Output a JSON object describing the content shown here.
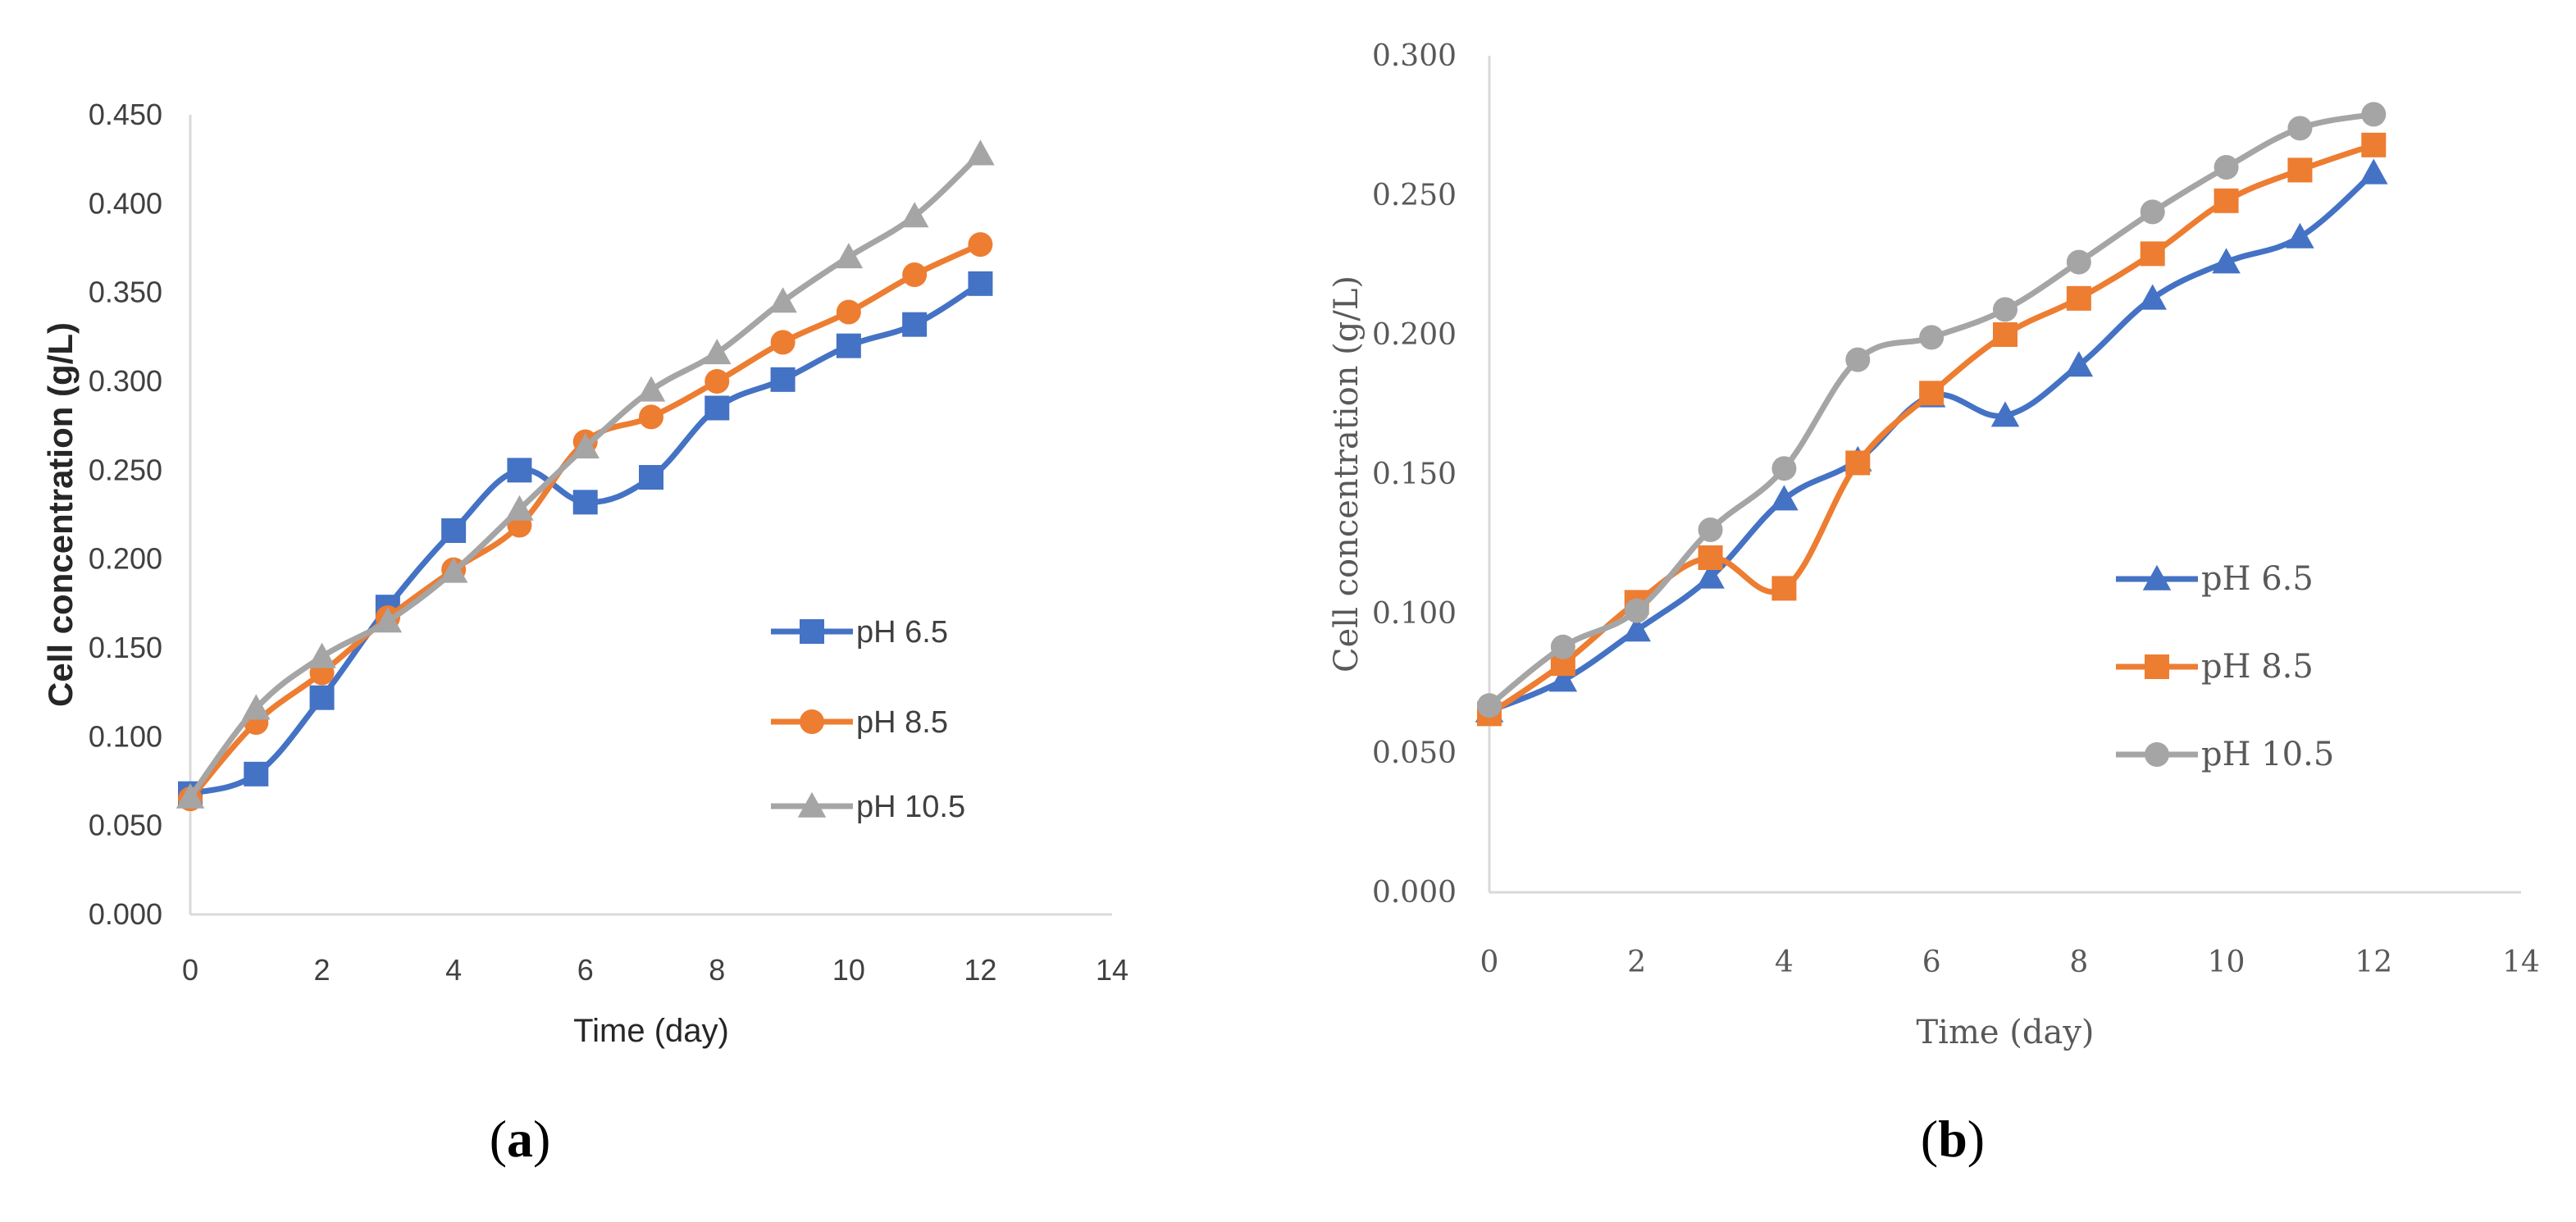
{
  "chart_data": [
    {
      "panel": "a",
      "type": "line",
      "xlabel": "Time (day)",
      "ylabel": "Cell concentration (g/L)",
      "xlim": [
        0,
        14
      ],
      "ylim": [
        0,
        0.45
      ],
      "xticks": [
        "0",
        "2",
        "4",
        "6",
        "8",
        "10",
        "12",
        "14"
      ],
      "yticks": [
        "0.000",
        "0.050",
        "0.100",
        "0.150",
        "0.200",
        "0.250",
        "0.300",
        "0.350",
        "0.400",
        "0.450"
      ],
      "x": [
        0,
        1,
        2,
        3,
        4,
        5,
        6,
        7,
        8,
        9,
        10,
        11,
        12
      ],
      "series": [
        {
          "name": "pH 6.5",
          "color": "#4472c4",
          "marker": "square",
          "values": [
            0.068,
            0.079,
            0.122,
            0.173,
            0.216,
            0.25,
            0.232,
            0.246,
            0.285,
            0.301,
            0.32,
            0.332,
            0.355
          ]
        },
        {
          "name": "pH 8.5",
          "color": "#ed7d31",
          "marker": "circle",
          "values": [
            0.065,
            0.108,
            0.136,
            0.167,
            0.194,
            0.219,
            0.266,
            0.28,
            0.3,
            0.322,
            0.339,
            0.36,
            0.377
          ]
        },
        {
          "name": "pH 10.5",
          "color": "#a5a5a5",
          "marker": "triangle",
          "values": [
            0.066,
            0.116,
            0.145,
            0.165,
            0.193,
            0.228,
            0.263,
            0.295,
            0.316,
            0.345,
            0.37,
            0.393,
            0.428
          ]
        }
      ]
    },
    {
      "panel": "b",
      "type": "line",
      "xlabel": "Time (day)",
      "ylabel": "Cell concentration (g/L)",
      "xlim": [
        0,
        14
      ],
      "ylim": [
        0,
        0.3
      ],
      "xticks": [
        "0",
        "2",
        "4",
        "6",
        "8",
        "10",
        "12",
        "14"
      ],
      "yticks": [
        "0.000",
        "0.050",
        "0.100",
        "0.150",
        "0.200",
        "0.250",
        "0.300"
      ],
      "x": [
        0,
        1,
        2,
        3,
        4,
        5,
        6,
        7,
        8,
        9,
        10,
        11,
        12
      ],
      "series": [
        {
          "name": "pH 6.5",
          "color": "#4472c4",
          "marker": "triangle",
          "values": [
            0.065,
            0.076,
            0.094,
            0.113,
            0.141,
            0.155,
            0.178,
            0.171,
            0.189,
            0.213,
            0.226,
            0.235,
            0.258
          ]
        },
        {
          "name": "pH 8.5",
          "color": "#ed7d31",
          "marker": "square",
          "values": [
            0.064,
            0.082,
            0.104,
            0.12,
            0.109,
            0.154,
            0.179,
            0.2,
            0.213,
            0.229,
            0.248,
            0.259,
            0.268
          ]
        },
        {
          "name": "pH 10.5",
          "color": "#a5a5a5",
          "marker": "circle",
          "values": [
            0.067,
            0.088,
            0.101,
            0.13,
            0.152,
            0.191,
            0.199,
            0.209,
            0.226,
            0.244,
            0.26,
            0.274,
            0.279
          ]
        }
      ]
    }
  ],
  "panel_labels": {
    "a": {
      "open": "(",
      "letter": "a",
      "close": ")"
    },
    "b": {
      "open": "(",
      "letter": "b",
      "close": ")"
    }
  }
}
